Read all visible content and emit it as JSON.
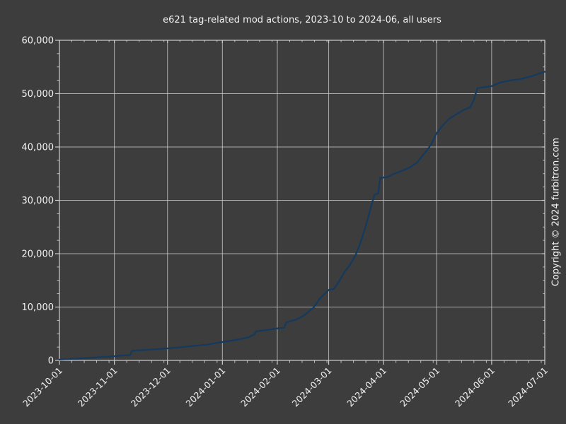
{
  "figure": {
    "watermark": "Copyright © 2024 furbitron.com",
    "background_color": "#3d3d3d",
    "text_color": "#f2f2f2",
    "grid_color": "#c8c8c8",
    "spine_color": "#cdcdcd"
  },
  "chart_data": {
    "type": "line",
    "title": "e621 tag-related mod actions, 2023-10 to 2024-06, all users",
    "xlabel": "",
    "ylabel": "",
    "xlim": [
      "2023-10-01",
      "2024-07-01"
    ],
    "ylim": [
      0,
      60000
    ],
    "grid": true,
    "legend_position": "none",
    "x_tick_labels": [
      "2023-10-01",
      "2023-11-01",
      "2023-12-01",
      "2024-01-01",
      "2024-02-01",
      "2024-03-01",
      "2024-04-01",
      "2024-05-01",
      "2024-06-01",
      "2024-07-01"
    ],
    "x_tick_label_rotation_deg": 45,
    "x_minor_days_of_month": [
      8,
      15,
      22,
      29
    ],
    "y_ticks": [
      0,
      10000,
      20000,
      30000,
      40000,
      50000,
      60000
    ],
    "y_tick_labels": [
      "0",
      "10,000",
      "20,000",
      "30,000",
      "40,000",
      "50,000",
      "60,000"
    ],
    "y_minor_step": 2500,
    "series": [
      {
        "color": "#153a5e",
        "line_width": 2.3,
        "points": [
          [
            "2023-10-01",
            150
          ],
          [
            "2023-10-08",
            280
          ],
          [
            "2023-10-15",
            420
          ],
          [
            "2023-10-22",
            560
          ],
          [
            "2023-10-29",
            720
          ],
          [
            "2023-11-05",
            900
          ],
          [
            "2023-11-10",
            1000
          ],
          [
            "2023-11-11",
            1800
          ],
          [
            "2023-11-18",
            1950
          ],
          [
            "2023-11-25",
            2120
          ],
          [
            "2023-12-01",
            2250
          ],
          [
            "2023-12-08",
            2450
          ],
          [
            "2023-12-15",
            2700
          ],
          [
            "2023-12-23",
            2950
          ],
          [
            "2024-01-01",
            3450
          ],
          [
            "2024-01-08",
            3800
          ],
          [
            "2024-01-15",
            4250
          ],
          [
            "2024-01-19",
            4850
          ],
          [
            "2024-01-20",
            5450
          ],
          [
            "2024-01-26",
            5700
          ],
          [
            "2024-02-01",
            6000
          ],
          [
            "2024-02-05",
            6150
          ],
          [
            "2024-02-06",
            7100
          ],
          [
            "2024-02-12",
            7700
          ],
          [
            "2024-02-16",
            8400
          ],
          [
            "2024-02-19",
            9200
          ],
          [
            "2024-02-22",
            10100
          ],
          [
            "2024-02-25",
            11600
          ],
          [
            "2024-03-01",
            13200
          ],
          [
            "2024-03-04",
            13400
          ],
          [
            "2024-03-07",
            14900
          ],
          [
            "2024-03-10",
            16600
          ],
          [
            "2024-03-13",
            17900
          ],
          [
            "2024-03-16",
            19600
          ],
          [
            "2024-03-18",
            21200
          ],
          [
            "2024-03-20",
            23100
          ],
          [
            "2024-03-22",
            25300
          ],
          [
            "2024-03-24",
            27600
          ],
          [
            "2024-03-26",
            30100
          ],
          [
            "2024-03-27",
            31100
          ],
          [
            "2024-03-29",
            31300
          ],
          [
            "2024-03-30",
            34200
          ],
          [
            "2024-04-03",
            34350
          ],
          [
            "2024-04-07",
            35000
          ],
          [
            "2024-04-12",
            35600
          ],
          [
            "2024-04-16",
            36200
          ],
          [
            "2024-04-20",
            37100
          ],
          [
            "2024-04-23",
            38400
          ],
          [
            "2024-04-26",
            39600
          ],
          [
            "2024-04-28",
            40600
          ],
          [
            "2024-05-01",
            42600
          ],
          [
            "2024-05-04",
            43900
          ],
          [
            "2024-05-08",
            45300
          ],
          [
            "2024-05-12",
            46100
          ],
          [
            "2024-05-16",
            46900
          ],
          [
            "2024-05-20",
            47500
          ],
          [
            "2024-05-22",
            48900
          ],
          [
            "2024-05-24",
            51000
          ],
          [
            "2024-06-01",
            51400
          ],
          [
            "2024-06-06",
            52100
          ],
          [
            "2024-06-12",
            52500
          ],
          [
            "2024-06-18",
            52800
          ],
          [
            "2024-06-24",
            53300
          ],
          [
            "2024-06-28",
            53800
          ],
          [
            "2024-07-01",
            54100
          ]
        ]
      }
    ]
  }
}
